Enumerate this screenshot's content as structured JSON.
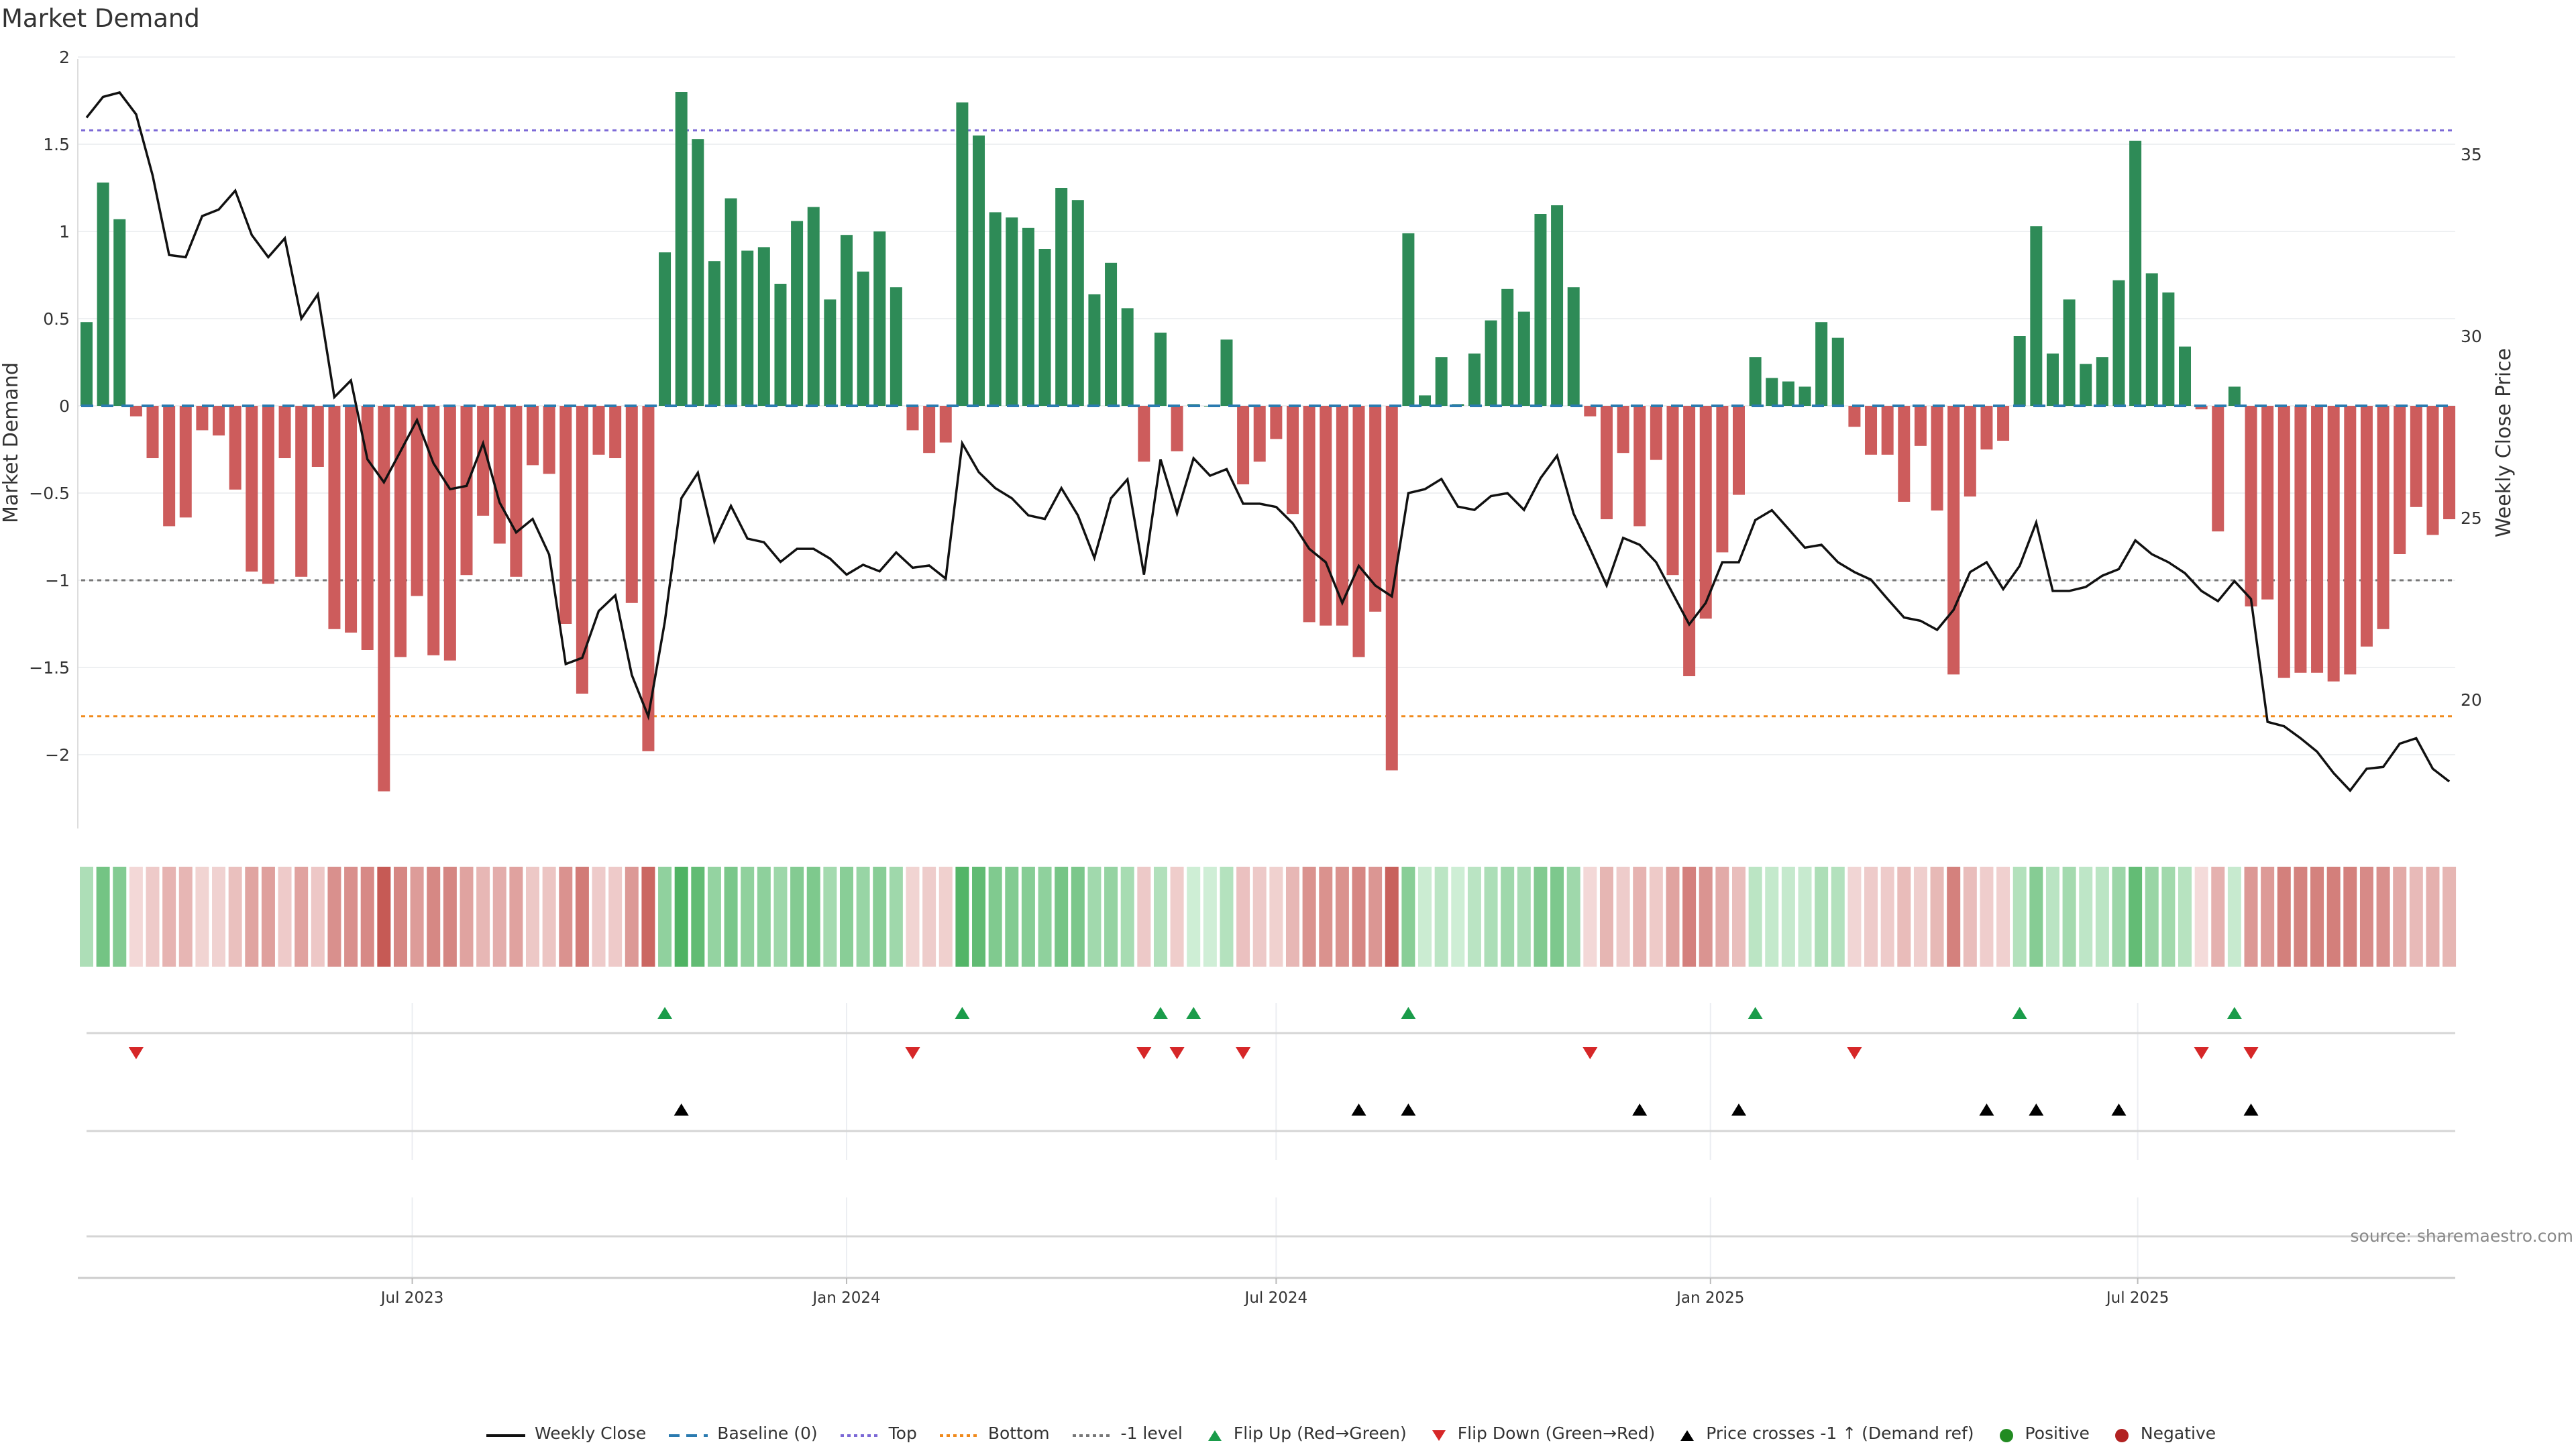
{
  "title": "Market Demand",
  "source": "source: sharemaestro.com",
  "chart_data": {
    "type": "bar",
    "title": "Market Demand",
    "ylabel": "Market Demand",
    "y2label": "Weekly Close Price",
    "xlabel": "",
    "frequency": "weekly",
    "x_start": "2023-02-13",
    "ylim": [
      -2.42,
      2.0
    ],
    "y2lim": [
      16.6,
      37.6
    ],
    "yticks": [
      2,
      1.5,
      1,
      0.5,
      0,
      -0.5,
      -1,
      -1.5,
      -2
    ],
    "ytick_labels": [
      "2",
      "1.5",
      "1",
      "0.5",
      "0",
      "−0.5",
      "−1",
      "−1.5",
      "−2"
    ],
    "y2ticks": [
      20,
      25,
      30,
      35
    ],
    "y2tick_labels": [
      "20",
      "25",
      "30",
      "35"
    ],
    "xticks": [
      "2023-07-01",
      "2024-01-01",
      "2024-07-01",
      "2025-01-01",
      "2025-07-01"
    ],
    "xtick_labels": [
      "Jul 2023",
      "Jan 2024",
      "Jul 2024",
      "Jan 2025",
      "Jul 2025"
    ],
    "grid": true,
    "legend_position": "bottom-center",
    "reference_lines": {
      "baseline": 0,
      "top": 1.58,
      "bottom": -1.78,
      "minus_one": -1
    },
    "demand": [
      0.48,
      1.28,
      1.07,
      -0.06,
      -0.3,
      -0.69,
      -0.64,
      -0.14,
      -0.17,
      -0.48,
      -0.95,
      -1.02,
      -0.3,
      -0.98,
      -0.35,
      -1.28,
      -1.3,
      -1.4,
      -2.21,
      -1.44,
      -1.09,
      -1.43,
      -1.46,
      -0.97,
      -0.63,
      -0.79,
      -0.98,
      -0.34,
      -0.39,
      -1.25,
      -1.65,
      -0.28,
      -0.3,
      -1.13,
      -1.98,
      0.88,
      1.8,
      1.53,
      0.83,
      1.19,
      0.89,
      0.91,
      0.7,
      1.06,
      1.14,
      0.61,
      0.98,
      0.77,
      1.0,
      0.68,
      -0.14,
      -0.27,
      -0.21,
      1.74,
      1.55,
      1.11,
      1.08,
      1.02,
      0.9,
      1.25,
      1.18,
      0.64,
      0.82,
      0.56,
      -0.32,
      0.42,
      -0.26,
      0.01,
      0.0,
      0.38,
      -0.45,
      -0.32,
      -0.19,
      -0.62,
      -1.24,
      -1.26,
      -1.26,
      -1.44,
      -1.18,
      -2.09,
      0.99,
      0.06,
      0.28,
      0.01,
      0.3,
      0.49,
      0.67,
      0.54,
      1.1,
      1.15,
      0.68,
      -0.06,
      -0.65,
      -0.27,
      -0.69,
      -0.31,
      -0.97,
      -1.55,
      -1.22,
      -0.84,
      -0.51,
      0.28,
      0.16,
      0.14,
      0.11,
      0.48,
      0.39,
      -0.12,
      -0.28,
      -0.28,
      -0.55,
      -0.23,
      -0.6,
      -1.54,
      -0.52,
      -0.25,
      -0.2,
      0.4,
      1.03,
      0.3,
      0.61,
      0.24,
      0.28,
      0.72,
      1.52,
      0.76,
      0.65,
      0.34,
      -0.02,
      -0.72,
      0.11,
      -1.15,
      -1.11,
      -1.56,
      -1.53,
      -1.53,
      -1.58,
      -1.54,
      -1.38,
      -1.28,
      -0.85,
      -0.58,
      -0.74,
      -0.65
    ],
    "weekly_close": [
      36.01,
      36.58,
      36.7,
      36.1,
      34.42,
      32.23,
      32.17,
      33.3,
      33.48,
      34.0,
      32.78,
      32.17,
      32.69,
      30.48,
      31.15,
      28.32,
      28.78,
      26.61,
      25.98,
      26.83,
      27.69,
      26.5,
      25.79,
      25.88,
      27.05,
      25.42,
      24.6,
      24.97,
      23.99,
      20.98,
      21.15,
      22.44,
      22.87,
      20.68,
      19.54,
      22.14,
      25.54,
      26.24,
      24.35,
      25.33,
      24.43,
      24.33,
      23.79,
      24.15,
      24.15,
      23.88,
      23.44,
      23.71,
      23.53,
      24.05,
      23.63,
      23.69,
      23.33,
      27.05,
      26.26,
      25.82,
      25.54,
      25.07,
      24.97,
      25.82,
      25.07,
      23.9,
      25.54,
      26.06,
      23.44,
      26.61,
      25.12,
      26.64,
      26.16,
      26.34,
      25.39,
      25.39,
      25.3,
      24.85,
      24.15,
      23.78,
      22.66,
      23.68,
      23.14,
      22.84,
      25.68,
      25.79,
      26.07,
      25.31,
      25.22,
      25.6,
      25.68,
      25.22,
      26.09,
      26.71,
      25.12,
      24.15,
      23.14,
      24.45,
      24.26,
      23.78,
      22.92,
      22.07,
      22.66,
      23.78,
      23.78,
      24.94,
      25.21,
      24.7,
      24.18,
      24.26,
      23.78,
      23.51,
      23.3,
      22.77,
      22.26,
      22.17,
      21.92,
      22.47,
      23.51,
      23.78,
      23.04,
      23.68,
      24.87,
      22.99,
      22.99,
      23.1,
      23.41,
      23.59,
      24.38,
      24.0,
      23.78,
      23.48,
      22.99,
      22.71,
      23.26,
      22.77,
      19.39,
      19.27,
      18.94,
      18.57,
      17.98,
      17.5,
      18.1,
      18.15,
      18.79,
      18.94,
      18.1,
      17.75
    ],
    "flip_up_weeks": [
      36,
      54,
      66,
      68,
      81,
      102,
      118,
      131
    ],
    "flip_down_weeks": [
      4,
      51,
      65,
      67,
      71,
      92,
      108,
      129,
      132
    ],
    "price_cross_up_weeks": [
      37,
      78,
      81,
      95,
      101,
      116,
      119,
      124,
      132
    ],
    "legend": [
      {
        "label": "Weekly Close",
        "symbol": "line",
        "color": "#111111"
      },
      {
        "label": "Baseline (0)",
        "symbol": "dash",
        "color": "#2b7bb0"
      },
      {
        "label": "Top",
        "symbol": "dot",
        "color": "#7b68d6"
      },
      {
        "label": "Bottom",
        "symbol": "dot",
        "color": "#f08a1c"
      },
      {
        "label": "-1 level",
        "symbol": "dot",
        "color": "#777777"
      },
      {
        "label": "Flip Up (Red→Green)",
        "symbol": "tri-up",
        "color": "#1a9c4a"
      },
      {
        "label": "Flip Down (Green→Red)",
        "symbol": "tri-down",
        "color": "#d62728"
      },
      {
        "label": "Price crosses -1 ↑ (Demand ref)",
        "symbol": "tri-up",
        "color": "#000000"
      },
      {
        "label": "Positive",
        "symbol": "circle",
        "color": "#228b22"
      },
      {
        "label": "Negative",
        "symbol": "circle",
        "color": "#b22222"
      }
    ]
  },
  "colors": {
    "positive_bar": "#2e8b57",
    "negative_bar": "#cd5c5c"
  }
}
